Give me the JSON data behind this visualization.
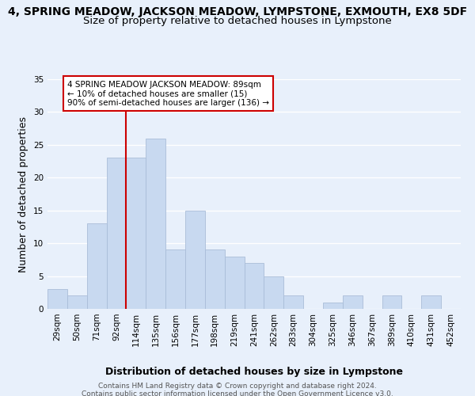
{
  "title_line1": "4, SPRING MEADOW, JACKSON MEADOW, LYMPSTONE, EXMOUTH, EX8 5DF",
  "title_line2": "Size of property relative to detached houses in Lympstone",
  "xlabel": "Distribution of detached houses by size in Lympstone",
  "ylabel": "Number of detached properties",
  "footer_line1": "Contains HM Land Registry data © Crown copyright and database right 2024.",
  "footer_line2": "Contains public sector information licensed under the Open Government Licence v3.0.",
  "bin_labels": [
    "29sqm",
    "50sqm",
    "71sqm",
    "92sqm",
    "114sqm",
    "135sqm",
    "156sqm",
    "177sqm",
    "198sqm",
    "219sqm",
    "241sqm",
    "262sqm",
    "283sqm",
    "304sqm",
    "325sqm",
    "346sqm",
    "367sqm",
    "389sqm",
    "410sqm",
    "431sqm",
    "452sqm"
  ],
  "bar_heights": [
    3,
    2,
    13,
    23,
    23,
    26,
    9,
    15,
    9,
    8,
    7,
    5,
    2,
    0,
    1,
    2,
    0,
    2,
    0,
    2,
    0
  ],
  "bar_color": "#c8d9f0",
  "bar_edge_color": "#aabdd8",
  "annotation_line1": "4 SPRING MEADOW JACKSON MEADOW: 89sqm",
  "annotation_line2": "← 10% of detached houses are smaller (15)",
  "annotation_line3": "90% of semi-detached houses are larger (136) →",
  "annotation_box_color": "#ffffff",
  "annotation_box_edge_color": "#cc0000",
  "property_vline_color": "#cc0000",
  "property_vline_index": 3,
  "ylim": [
    0,
    35
  ],
  "yticks": [
    0,
    5,
    10,
    15,
    20,
    25,
    30,
    35
  ],
  "background_color": "#e8f0fb",
  "grid_color": "#ffffff",
  "title_fontsize": 10,
  "subtitle_fontsize": 9.5,
  "axis_label_fontsize": 9,
  "tick_fontsize": 7.5,
  "footer_fontsize": 6.5
}
